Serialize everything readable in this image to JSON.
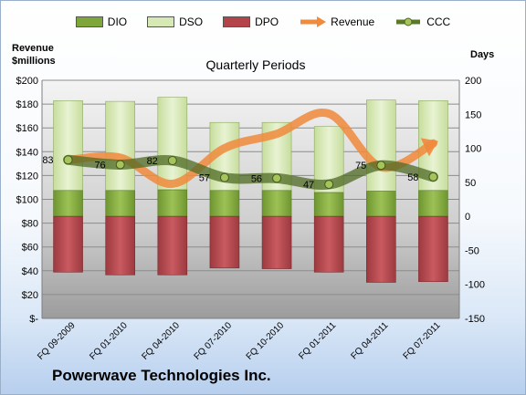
{
  "chart_data": {
    "type": "bar",
    "title": "Quarterly Periods",
    "footer": "Powerwave Technologies Inc.",
    "left_axis_label": [
      "Revenue",
      "$millions"
    ],
    "right_axis_label": "Days",
    "left_ylim": [
      0,
      200
    ],
    "left_ticks": [
      "$-",
      "$20",
      "$40",
      "$60",
      "$80",
      "$100",
      "$120",
      "$140",
      "$160",
      "$180",
      "$200"
    ],
    "left_tick_values": [
      0,
      20,
      40,
      60,
      80,
      100,
      120,
      140,
      160,
      180,
      200
    ],
    "right_ylim": [
      -150,
      200
    ],
    "right_ticks": [
      "-150",
      "-100",
      "-50",
      "0",
      "50",
      "100",
      "150",
      "200"
    ],
    "right_tick_values": [
      -150,
      -100,
      -50,
      0,
      50,
      100,
      150,
      200
    ],
    "categories": [
      "FQ 09-2009",
      "FQ 01-2010",
      "FQ 04-2010",
      "FQ 07-2010",
      "FQ 10-2010",
      "FQ 01-2011",
      "FQ 04-2011",
      "FQ 07-2011"
    ],
    "legend": [
      {
        "name": "DIO",
        "kind": "bar",
        "color": "#7fa63a"
      },
      {
        "name": "DSO",
        "kind": "bar",
        "color": "#d6e8b4"
      },
      {
        "name": "DPO",
        "kind": "bar",
        "color": "#b4444a"
      },
      {
        "name": "Revenue",
        "kind": "line",
        "color": "#f08a3c"
      },
      {
        "name": "CCC",
        "kind": "line-marker",
        "color": "#5a7a28"
      }
    ],
    "series": [
      {
        "name": "DIO",
        "axis": "right",
        "values": [
          38,
          38,
          39,
          38,
          38,
          35,
          37,
          38
        ]
      },
      {
        "name": "DSO",
        "axis": "right",
        "values": [
          132,
          131,
          136,
          100,
          100,
          97,
          134,
          132
        ]
      },
      {
        "name": "DPO",
        "axis": "right",
        "values": [
          -82,
          -86,
          -86,
          -76,
          -77,
          -82,
          -97,
          -96
        ]
      },
      {
        "name": "Revenue",
        "axis": "left",
        "values": [
          133,
          135,
          113,
          143,
          155,
          172,
          127,
          147
        ]
      },
      {
        "name": "CCC",
        "axis": "right",
        "values": [
          83,
          76,
          82,
          57,
          56,
          47,
          75,
          58
        ]
      }
    ],
    "ccc_labels": [
      "83",
      "76",
      "82",
      "57",
      "56",
      "47",
      "75",
      "58"
    ],
    "grid": true
  }
}
